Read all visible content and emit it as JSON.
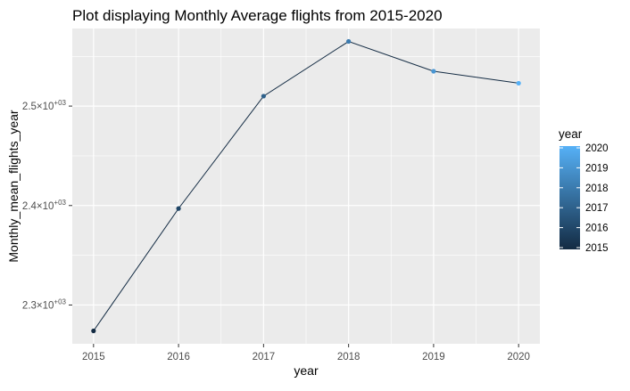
{
  "chart_data": {
    "type": "line",
    "title": "Plot displaying Monthly Average flights from 2015-2020",
    "xlabel": "year",
    "ylabel": "Monthly_mean_flights_year",
    "x": [
      2015,
      2016,
      2017,
      2018,
      2019,
      2020
    ],
    "series": [
      {
        "values": [
          2274,
          2397,
          2510,
          2565,
          2535,
          2523
        ]
      }
    ],
    "xlim": [
      2014.75,
      2020.25
    ],
    "ylim": [
      2261,
      2578
    ],
    "x_ticks": [
      {
        "value": 2015,
        "label": "2015"
      },
      {
        "value": 2016,
        "label": "2016"
      },
      {
        "value": 2017,
        "label": "2017"
      },
      {
        "value": 2018,
        "label": "2018"
      },
      {
        "value": 2019,
        "label": "2019"
      },
      {
        "value": 2020,
        "label": "2020"
      }
    ],
    "y_ticks": [
      {
        "value": 2300,
        "mantissa": "2.3",
        "exp": "+03"
      },
      {
        "value": 2400,
        "mantissa": "2.4",
        "exp": "+03"
      },
      {
        "value": 2500,
        "mantissa": "2.5",
        "exp": "+03"
      }
    ],
    "y_tick_times": "×10",
    "grid": true,
    "panel_background": "#ebebeb",
    "grid_color": "#ffffff",
    "line_color": "#132b43",
    "color_low": "#132b43",
    "color_high": "#56b1f7",
    "legend": {
      "title": "year",
      "position": "right",
      "labels": [
        "2020",
        "2019",
        "2018",
        "2017",
        "2016",
        "2015"
      ]
    }
  }
}
